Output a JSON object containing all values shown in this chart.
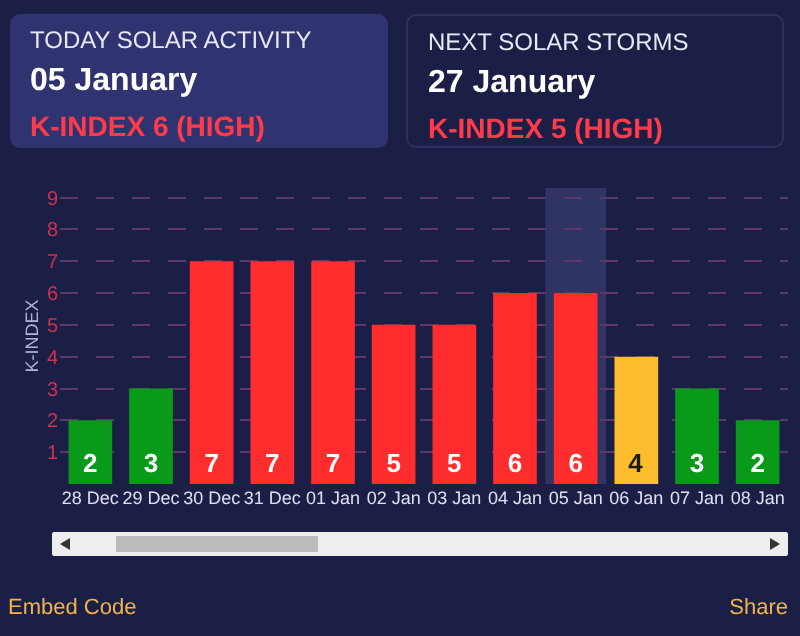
{
  "chart_data": [
    {
      "type": "other",
      "title": "TODAY SOLAR ACTIVITY",
      "subtitle": "05 January",
      "annotations": [
        "K-INDEX 6 (HIGH)"
      ]
    },
    {
      "type": "other",
      "title": "NEXT SOLAR STORMS",
      "subtitle": "27 January",
      "annotations": [
        "K-INDEX 5 (HIGH)"
      ]
    },
    {
      "type": "bar",
      "ylabel": "K-INDEX",
      "categories": [
        "28 Dec",
        "29 Dec",
        "30 Dec",
        "31 Dec",
        "01 Jan",
        "02 Jan",
        "03 Jan",
        "04 Jan",
        "05 Jan",
        "06 Jan",
        "07 Jan",
        "08 Jan"
      ],
      "values": [
        2,
        3,
        7,
        7,
        7,
        5,
        5,
        6,
        6,
        4,
        3,
        2
      ],
      "colors": [
        "#0a9a1a",
        "#0a9a1a",
        "#ff2d2d",
        "#ff2d2d",
        "#ff2d2d",
        "#ff2d2d",
        "#ff2d2d",
        "#ff2d2d",
        "#ff2d2d",
        "#fbbd2d",
        "#0a9a1a",
        "#0a9a1a"
      ],
      "data_labels": true,
      "ylim": [
        0,
        9.3
      ],
      "yticks": [
        1,
        2,
        3,
        4,
        5,
        6,
        7,
        8,
        9
      ],
      "grid": "y",
      "bands": [
        {
          "axis": "x",
          "from": "05 Jan",
          "to": "05 Jan",
          "color": "#2f3463"
        }
      ],
      "annotations": [
        "Embed Code",
        "Share"
      ]
    }
  ]
}
